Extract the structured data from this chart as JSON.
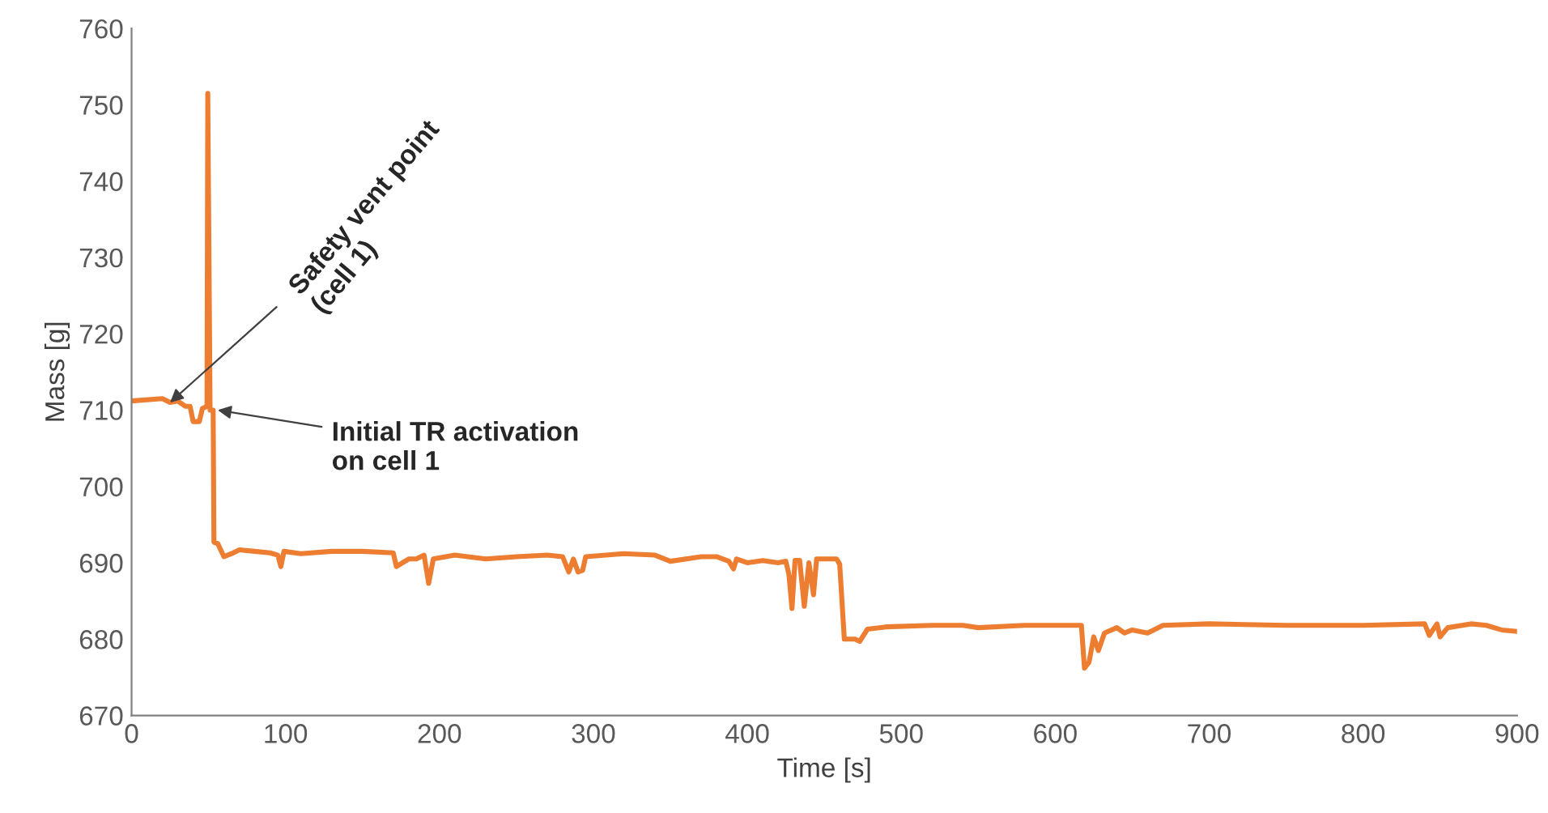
{
  "chart_data": {
    "type": "line",
    "xlabel": "Time [s]",
    "ylabel": "Mass [g]",
    "x": [
      0,
      20,
      25,
      30,
      35,
      38,
      40,
      44,
      46,
      49,
      49.5,
      51,
      53,
      53.5,
      56,
      60,
      65,
      70,
      80,
      90,
      95,
      97,
      99,
      110,
      130,
      150,
      170,
      172,
      180,
      185,
      190,
      193,
      196,
      210,
      230,
      250,
      270,
      280,
      284,
      287,
      290,
      293,
      295,
      320,
      340,
      350,
      370,
      380,
      388,
      391,
      393,
      400,
      410,
      420,
      425,
      427,
      429,
      431,
      434,
      437,
      440,
      443,
      445,
      450,
      458,
      460,
      463,
      470,
      473,
      478,
      490,
      520,
      540,
      550,
      580,
      617,
      619,
      622,
      625,
      628,
      632,
      640,
      645,
      650,
      660,
      670,
      700,
      750,
      800,
      840,
      843,
      848,
      850,
      855,
      870,
      880,
      890,
      900
    ],
    "series": [
      {
        "color": "#ed7d31",
        "values": [
          711.2,
          711.5,
          711,
          711.2,
          710.5,
          710.5,
          708.5,
          708.5,
          710.2,
          710.5,
          751.5,
          710,
          710,
          692.7,
          692.5,
          690.8,
          691.2,
          691.7,
          691.5,
          691.3,
          691,
          689.5,
          691.5,
          691.2,
          691.5,
          691.5,
          691.3,
          689.5,
          690.5,
          690.5,
          691,
          687.3,
          690.5,
          691,
          690.5,
          690.8,
          691,
          690.8,
          688.8,
          690.5,
          688.8,
          689,
          690.8,
          691.2,
          691,
          690.2,
          690.8,
          690.8,
          690.2,
          689.2,
          690.5,
          690,
          690.3,
          690,
          690.2,
          688.5,
          684,
          690.3,
          690.3,
          684.3,
          690,
          685.8,
          690.5,
          690.5,
          690.5,
          689.8,
          680,
          680,
          679.7,
          681.3,
          681.6,
          681.8,
          681.8,
          681.5,
          681.8,
          681.8,
          676.2,
          677,
          680.3,
          678.5,
          680.8,
          681.5,
          680.8,
          681.2,
          680.8,
          681.8,
          682,
          681.8,
          681.8,
          682,
          680.5,
          682,
          680.3,
          681.5,
          682,
          681.8,
          681.2,
          681
        ]
      }
    ],
    "xlim": [
      0,
      900
    ],
    "xticks": [
      0,
      100,
      200,
      300,
      400,
      500,
      600,
      700,
      800,
      900
    ],
    "ylim": [
      670,
      760
    ],
    "yticks": [
      670,
      680,
      690,
      700,
      710,
      720,
      730,
      740,
      750,
      760
    ],
    "grid": false,
    "marker": "none",
    "line_style": "solid",
    "annotations": [
      {
        "text": "Safety vent point\n(cell 1)",
        "x": 25,
        "y": 711
      },
      {
        "text": "Initial TR activation\non cell 1",
        "x": 56,
        "y": 710
      }
    ]
  }
}
